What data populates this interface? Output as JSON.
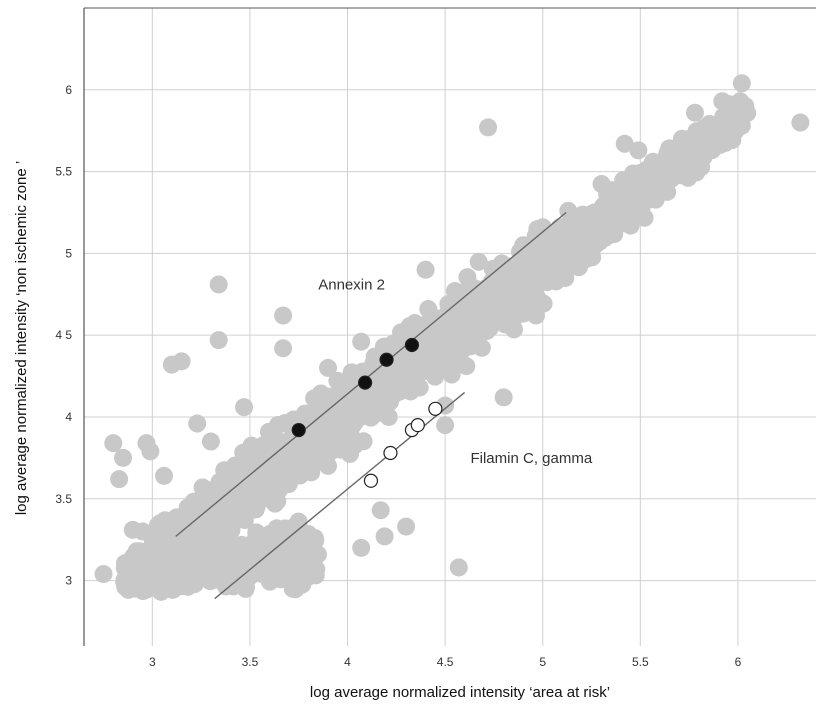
{
  "chart_data": {
    "type": "scatter",
    "title": "",
    "xlabel": "log average normalized intensity ‘area at risk’",
    "ylabel": "log average normalized intensity ‘non ischemic zone ’",
    "xlim": [
      2.65,
      6.4
    ],
    "ylim": [
      2.6,
      6.5
    ],
    "x_ticks": [
      3,
      3.5,
      4,
      4.5,
      5,
      5.5,
      6
    ],
    "x_tick_labels": [
      "3",
      "3.5",
      "4",
      "4.5",
      "5",
      "5.5",
      "6"
    ],
    "y_ticks": [
      3,
      3.5,
      4,
      4.5,
      5,
      5.5,
      6
    ],
    "y_tick_labels": [
      "3",
      "3.5",
      "4",
      "4 5",
      "5",
      "5.5",
      "6"
    ],
    "grid": true,
    "colors": {
      "background_points": "#c8c8c8",
      "annexin_points": "#111111",
      "filamin_points": "#ffffff",
      "regression_lines": "#666666",
      "grid": "#d0d0d0"
    },
    "annotations": [
      {
        "text": "Annexin 2",
        "x": 3.85,
        "y": 4.78
      },
      {
        "text": "Filamin C, gamma",
        "x": 4.63,
        "y": 3.72
      }
    ],
    "series": [
      {
        "color": "#111111",
        "marker": "filled-circle",
        "x": [
          3.75,
          4.09,
          4.2,
          4.33
        ],
        "y": [
          3.92,
          4.21,
          4.35,
          4.44
        ]
      },
      {
        "color": "#ffffff",
        "marker": "open-circle",
        "x": [
          4.12,
          4.22,
          4.33,
          4.36,
          4.45
        ],
        "y": [
          3.61,
          3.78,
          3.92,
          3.95,
          4.05
        ]
      }
    ],
    "lines": [
      {
        "x": [
          3.12,
          5.12
        ],
        "y": [
          3.27,
          5.25
        ],
        "style": "solid"
      },
      {
        "x": [
          3.32,
          4.6
        ],
        "y": [
          2.89,
          4.15
        ],
        "style": "solid"
      },
      {
        "x": [
          4.6,
          4.85
        ],
        "y": [
          4.15,
          4.4
        ],
        "style": "dashed"
      }
    ],
    "background_cloud": {
      "description_free": true,
      "count_x_range": [
        2.75,
        6.3
      ],
      "outliers": [
        {
          "x": 2.75,
          "y": 3.04
        },
        {
          "x": 2.8,
          "y": 3.84
        },
        {
          "x": 2.83,
          "y": 3.62
        },
        {
          "x": 2.85,
          "y": 3.75
        },
        {
          "x": 2.9,
          "y": 3.31
        },
        {
          "x": 2.95,
          "y": 3.3
        },
        {
          "x": 2.97,
          "y": 3.84
        },
        {
          "x": 2.99,
          "y": 3.79
        },
        {
          "x": 3.06,
          "y": 3.64
        },
        {
          "x": 3.1,
          "y": 4.32
        },
        {
          "x": 3.15,
          "y": 4.34
        },
        {
          "x": 3.23,
          "y": 3.96
        },
        {
          "x": 3.34,
          "y": 4.81
        },
        {
          "x": 3.34,
          "y": 4.47
        },
        {
          "x": 3.47,
          "y": 4.06
        },
        {
          "x": 3.67,
          "y": 4.62
        },
        {
          "x": 3.67,
          "y": 4.42
        },
        {
          "x": 4.07,
          "y": 4.46
        },
        {
          "x": 4.07,
          "y": 3.2
        },
        {
          "x": 4.19,
          "y": 3.27
        },
        {
          "x": 4.3,
          "y": 3.33
        },
        {
          "x": 4.17,
          "y": 3.43
        },
        {
          "x": 4.57,
          "y": 3.08
        },
        {
          "x": 4.5,
          "y": 3.95
        },
        {
          "x": 4.5,
          "y": 4.07
        },
        {
          "x": 4.8,
          "y": 4.12
        },
        {
          "x": 4.72,
          "y": 5.77
        },
        {
          "x": 5.49,
          "y": 5.63
        },
        {
          "x": 5.42,
          "y": 5.67
        },
        {
          "x": 5.92,
          "y": 5.93
        },
        {
          "x": 6.02,
          "y": 5.78
        },
        {
          "x": 6.02,
          "y": 6.04
        },
        {
          "x": 6.32,
          "y": 5.8
        },
        {
          "x": 5.78,
          "y": 5.86
        },
        {
          "x": 5.6,
          "y": 5.53
        },
        {
          "x": 5.45,
          "y": 5.17
        },
        {
          "x": 5.23,
          "y": 5.09
        },
        {
          "x": 4.55,
          "y": 4.77
        },
        {
          "x": 4.4,
          "y": 4.9
        },
        {
          "x": 3.9,
          "y": 4.3
        },
        {
          "x": 3.6,
          "y": 3.65
        },
        {
          "x": 3.3,
          "y": 3.85
        },
        {
          "x": 3.38,
          "y": 3.17
        },
        {
          "x": 4.74,
          "y": 4.83
        },
        {
          "x": 4.9,
          "y": 5.05
        }
      ]
    }
  }
}
